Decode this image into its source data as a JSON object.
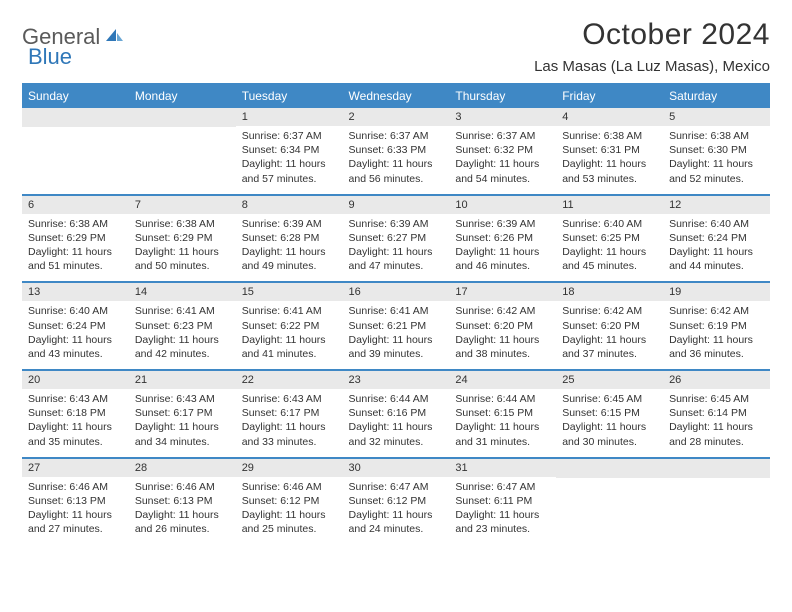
{
  "brand": {
    "text1": "General",
    "text2": "Blue",
    "text1_color": "#5a5a5a",
    "text2_color": "#2f77b8",
    "icon_color": "#2f77b8"
  },
  "title": "October 2024",
  "location": "Las Masas (La Luz Masas), Mexico",
  "colors": {
    "header_bg": "#3f88c5",
    "header_text": "#ffffff",
    "daynum_bg": "#e9e9e9",
    "text": "#333333",
    "divider": "#3f88c5",
    "page_bg": "#ffffff"
  },
  "fonts": {
    "title_size": 30,
    "location_size": 15,
    "header_size": 12,
    "daynum_size": 11,
    "cell_size": 10.5
  },
  "day_headers": [
    "Sunday",
    "Monday",
    "Tuesday",
    "Wednesday",
    "Thursday",
    "Friday",
    "Saturday"
  ],
  "weeks": [
    [
      null,
      null,
      {
        "n": "1",
        "sr": "Sunrise: 6:37 AM",
        "ss": "Sunset: 6:34 PM",
        "dl": "Daylight: 11 hours and 57 minutes."
      },
      {
        "n": "2",
        "sr": "Sunrise: 6:37 AM",
        "ss": "Sunset: 6:33 PM",
        "dl": "Daylight: 11 hours and 56 minutes."
      },
      {
        "n": "3",
        "sr": "Sunrise: 6:37 AM",
        "ss": "Sunset: 6:32 PM",
        "dl": "Daylight: 11 hours and 54 minutes."
      },
      {
        "n": "4",
        "sr": "Sunrise: 6:38 AM",
        "ss": "Sunset: 6:31 PM",
        "dl": "Daylight: 11 hours and 53 minutes."
      },
      {
        "n": "5",
        "sr": "Sunrise: 6:38 AM",
        "ss": "Sunset: 6:30 PM",
        "dl": "Daylight: 11 hours and 52 minutes."
      }
    ],
    [
      {
        "n": "6",
        "sr": "Sunrise: 6:38 AM",
        "ss": "Sunset: 6:29 PM",
        "dl": "Daylight: 11 hours and 51 minutes."
      },
      {
        "n": "7",
        "sr": "Sunrise: 6:38 AM",
        "ss": "Sunset: 6:29 PM",
        "dl": "Daylight: 11 hours and 50 minutes."
      },
      {
        "n": "8",
        "sr": "Sunrise: 6:39 AM",
        "ss": "Sunset: 6:28 PM",
        "dl": "Daylight: 11 hours and 49 minutes."
      },
      {
        "n": "9",
        "sr": "Sunrise: 6:39 AM",
        "ss": "Sunset: 6:27 PM",
        "dl": "Daylight: 11 hours and 47 minutes."
      },
      {
        "n": "10",
        "sr": "Sunrise: 6:39 AM",
        "ss": "Sunset: 6:26 PM",
        "dl": "Daylight: 11 hours and 46 minutes."
      },
      {
        "n": "11",
        "sr": "Sunrise: 6:40 AM",
        "ss": "Sunset: 6:25 PM",
        "dl": "Daylight: 11 hours and 45 minutes."
      },
      {
        "n": "12",
        "sr": "Sunrise: 6:40 AM",
        "ss": "Sunset: 6:24 PM",
        "dl": "Daylight: 11 hours and 44 minutes."
      }
    ],
    [
      {
        "n": "13",
        "sr": "Sunrise: 6:40 AM",
        "ss": "Sunset: 6:24 PM",
        "dl": "Daylight: 11 hours and 43 minutes."
      },
      {
        "n": "14",
        "sr": "Sunrise: 6:41 AM",
        "ss": "Sunset: 6:23 PM",
        "dl": "Daylight: 11 hours and 42 minutes."
      },
      {
        "n": "15",
        "sr": "Sunrise: 6:41 AM",
        "ss": "Sunset: 6:22 PM",
        "dl": "Daylight: 11 hours and 41 minutes."
      },
      {
        "n": "16",
        "sr": "Sunrise: 6:41 AM",
        "ss": "Sunset: 6:21 PM",
        "dl": "Daylight: 11 hours and 39 minutes."
      },
      {
        "n": "17",
        "sr": "Sunrise: 6:42 AM",
        "ss": "Sunset: 6:20 PM",
        "dl": "Daylight: 11 hours and 38 minutes."
      },
      {
        "n": "18",
        "sr": "Sunrise: 6:42 AM",
        "ss": "Sunset: 6:20 PM",
        "dl": "Daylight: 11 hours and 37 minutes."
      },
      {
        "n": "19",
        "sr": "Sunrise: 6:42 AM",
        "ss": "Sunset: 6:19 PM",
        "dl": "Daylight: 11 hours and 36 minutes."
      }
    ],
    [
      {
        "n": "20",
        "sr": "Sunrise: 6:43 AM",
        "ss": "Sunset: 6:18 PM",
        "dl": "Daylight: 11 hours and 35 minutes."
      },
      {
        "n": "21",
        "sr": "Sunrise: 6:43 AM",
        "ss": "Sunset: 6:17 PM",
        "dl": "Daylight: 11 hours and 34 minutes."
      },
      {
        "n": "22",
        "sr": "Sunrise: 6:43 AM",
        "ss": "Sunset: 6:17 PM",
        "dl": "Daylight: 11 hours and 33 minutes."
      },
      {
        "n": "23",
        "sr": "Sunrise: 6:44 AM",
        "ss": "Sunset: 6:16 PM",
        "dl": "Daylight: 11 hours and 32 minutes."
      },
      {
        "n": "24",
        "sr": "Sunrise: 6:44 AM",
        "ss": "Sunset: 6:15 PM",
        "dl": "Daylight: 11 hours and 31 minutes."
      },
      {
        "n": "25",
        "sr": "Sunrise: 6:45 AM",
        "ss": "Sunset: 6:15 PM",
        "dl": "Daylight: 11 hours and 30 minutes."
      },
      {
        "n": "26",
        "sr": "Sunrise: 6:45 AM",
        "ss": "Sunset: 6:14 PM",
        "dl": "Daylight: 11 hours and 28 minutes."
      }
    ],
    [
      {
        "n": "27",
        "sr": "Sunrise: 6:46 AM",
        "ss": "Sunset: 6:13 PM",
        "dl": "Daylight: 11 hours and 27 minutes."
      },
      {
        "n": "28",
        "sr": "Sunrise: 6:46 AM",
        "ss": "Sunset: 6:13 PM",
        "dl": "Daylight: 11 hours and 26 minutes."
      },
      {
        "n": "29",
        "sr": "Sunrise: 6:46 AM",
        "ss": "Sunset: 6:12 PM",
        "dl": "Daylight: 11 hours and 25 minutes."
      },
      {
        "n": "30",
        "sr": "Sunrise: 6:47 AM",
        "ss": "Sunset: 6:12 PM",
        "dl": "Daylight: 11 hours and 24 minutes."
      },
      {
        "n": "31",
        "sr": "Sunrise: 6:47 AM",
        "ss": "Sunset: 6:11 PM",
        "dl": "Daylight: 11 hours and 23 minutes."
      },
      null,
      null
    ]
  ]
}
